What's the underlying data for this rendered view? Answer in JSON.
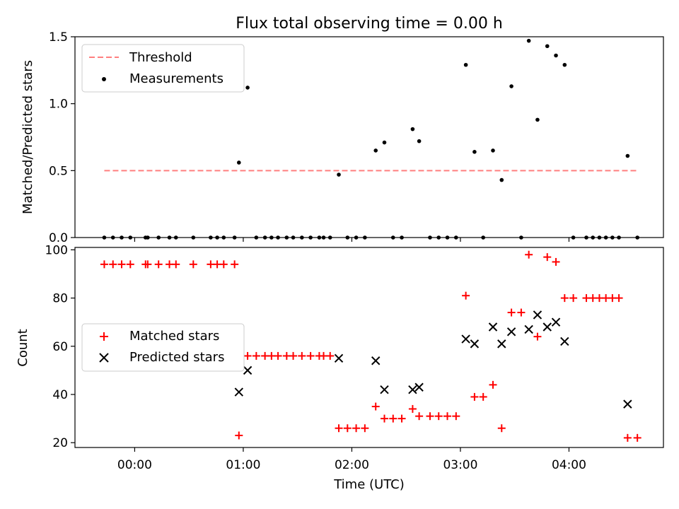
{
  "chart_data": [
    {
      "type": "scatter",
      "title": "Flux total observing time = 0.00 h",
      "xlabel": "",
      "ylabel": "Matched/Predicted stars",
      "xlim": [
        -0.55,
        4.87
      ],
      "ylim": [
        0,
        1.5
      ],
      "yticks": [
        0.0,
        0.5,
        1.0,
        1.5
      ],
      "ytick_labels": [
        "0.0",
        "0.5",
        "1.0",
        "1.5"
      ],
      "xticks": [
        0,
        1,
        2,
        3,
        4
      ],
      "legend": {
        "location": "top-left",
        "entries": [
          "Threshold",
          "Measurements"
        ]
      },
      "threshold": {
        "name": "Threshold",
        "y": 0.5,
        "x_range": [
          -0.28,
          4.63
        ],
        "color": "#ff7f7f"
      },
      "series": [
        {
          "name": "Measurements",
          "color": "#000000",
          "x": [
            -0.28,
            -0.2,
            -0.12,
            -0.04,
            0.1,
            0.12,
            0.22,
            0.32,
            0.38,
            0.54,
            0.7,
            0.76,
            0.82,
            0.92,
            0.96,
            1.04,
            1.12,
            1.2,
            1.26,
            1.32,
            1.4,
            1.46,
            1.54,
            1.62,
            1.7,
            1.74,
            1.8,
            1.88,
            1.96,
            2.04,
            2.12,
            2.22,
            2.3,
            2.38,
            2.46,
            2.56,
            2.62,
            2.72,
            2.8,
            2.88,
            2.96,
            3.05,
            3.13,
            3.21,
            3.3,
            3.38,
            3.47,
            3.56,
            3.63,
            3.71,
            3.8,
            3.88,
            3.96,
            4.04,
            4.16,
            4.22,
            4.28,
            4.34,
            4.4,
            4.46,
            4.54,
            4.63
          ],
          "y": [
            0,
            0,
            0,
            0,
            0,
            0,
            0,
            0,
            0,
            0,
            0,
            0,
            0,
            0,
            0.56,
            1.12,
            0,
            0,
            0,
            0,
            0,
            0,
            0,
            0,
            0,
            0,
            0,
            0.47,
            0,
            0,
            0,
            0.65,
            0.71,
            0,
            0,
            0.81,
            0.72,
            0,
            0,
            0,
            0,
            1.29,
            0.64,
            0,
            0.65,
            0.43,
            1.13,
            0,
            1.47,
            0.88,
            1.43,
            1.36,
            1.29,
            0,
            0,
            0,
            0,
            0,
            0,
            0,
            0.61,
            0
          ]
        }
      ]
    },
    {
      "type": "scatter",
      "title": "",
      "xlabel": "Time (UTC)",
      "ylabel": "Count",
      "xlim": [
        -0.55,
        4.87
      ],
      "ylim": [
        18,
        101
      ],
      "yticks": [
        20,
        40,
        60,
        80,
        100
      ],
      "ytick_labels": [
        "20",
        "40",
        "60",
        "80",
        "100"
      ],
      "xticks": [
        0,
        1,
        2,
        3,
        4
      ],
      "xtick_labels": [
        "00:00",
        "01:00",
        "02:00",
        "03:00",
        "04:00"
      ],
      "legend": {
        "location": "center-left",
        "entries": [
          "Matched stars",
          "Predicted stars"
        ]
      },
      "series": [
        {
          "name": "Matched stars",
          "marker": "plus",
          "color": "#ff0000",
          "x": [
            -0.28,
            -0.2,
            -0.12,
            -0.04,
            0.1,
            0.12,
            0.22,
            0.32,
            0.38,
            0.54,
            0.7,
            0.76,
            0.82,
            0.92,
            0.96,
            1.04,
            1.12,
            1.2,
            1.26,
            1.32,
            1.4,
            1.46,
            1.54,
            1.62,
            1.7,
            1.74,
            1.8,
            1.88,
            1.96,
            2.04,
            2.12,
            2.22,
            2.3,
            2.38,
            2.46,
            2.56,
            2.62,
            2.72,
            2.8,
            2.88,
            2.96,
            3.05,
            3.13,
            3.21,
            3.3,
            3.38,
            3.47,
            3.56,
            3.63,
            3.71,
            3.8,
            3.88,
            3.96,
            4.04,
            4.16,
            4.22,
            4.28,
            4.34,
            4.4,
            4.46,
            4.54,
            4.63
          ],
          "y": [
            94,
            94,
            94,
            94,
            94,
            94,
            94,
            94,
            94,
            94,
            94,
            94,
            94,
            94,
            23,
            56,
            56,
            56,
            56,
            56,
            56,
            56,
            56,
            56,
            56,
            56,
            56,
            26,
            26,
            26,
            26,
            35,
            30,
            30,
            30,
            34,
            31,
            31,
            31,
            31,
            31,
            81,
            39,
            39,
            44,
            26,
            74,
            74,
            98,
            64,
            97,
            95,
            80,
            80,
            80,
            80,
            80,
            80,
            80,
            80,
            22,
            22
          ]
        },
        {
          "name": "Predicted stars",
          "marker": "x",
          "color": "#000000",
          "x": [
            0.96,
            1.04,
            1.88,
            2.22,
            2.3,
            2.56,
            2.62,
            3.05,
            3.13,
            3.3,
            3.38,
            3.47,
            3.63,
            3.71,
            3.8,
            3.88,
            3.96,
            4.54
          ],
          "y": [
            41,
            50,
            55,
            54,
            42,
            42,
            43,
            63,
            61,
            68,
            61,
            66,
            67,
            73,
            68,
            70,
            62,
            36
          ]
        }
      ]
    }
  ]
}
